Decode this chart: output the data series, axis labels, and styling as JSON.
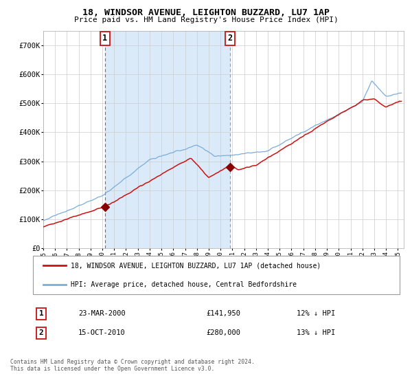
{
  "title": "18, WINDSOR AVENUE, LEIGHTON BUZZARD, LU7 1AP",
  "subtitle": "Price paid vs. HM Land Registry's House Price Index (HPI)",
  "legend_line1": "18, WINDSOR AVENUE, LEIGHTON BUZZARD, LU7 1AP (detached house)",
  "legend_line2": "HPI: Average price, detached house, Central Bedfordshire",
  "transaction1_date": "23-MAR-2000",
  "transaction1_price": "£141,950",
  "transaction1_hpi": "12% ↓ HPI",
  "transaction1_year": 2000.22,
  "transaction1_value": 141950,
  "transaction2_date": "15-OCT-2010",
  "transaction2_price": "£280,000",
  "transaction2_hpi": "13% ↓ HPI",
  "transaction2_year": 2010.79,
  "transaction2_value": 280000,
  "hpi_color": "#7aadda",
  "price_color": "#cc1111",
  "marker_color": "#880000",
  "shading_color": "#daeaf8",
  "vline1_color": "#cc4444",
  "vline2_color": "#8899bb",
  "footer": "Contains HM Land Registry data © Crown copyright and database right 2024.\nThis data is licensed under the Open Government Licence v3.0.",
  "ylim": [
    0,
    750000
  ],
  "xlim_start": 1995.0,
  "xlim_end": 2025.5,
  "background_color": "#ffffff",
  "grid_color": "#cccccc"
}
